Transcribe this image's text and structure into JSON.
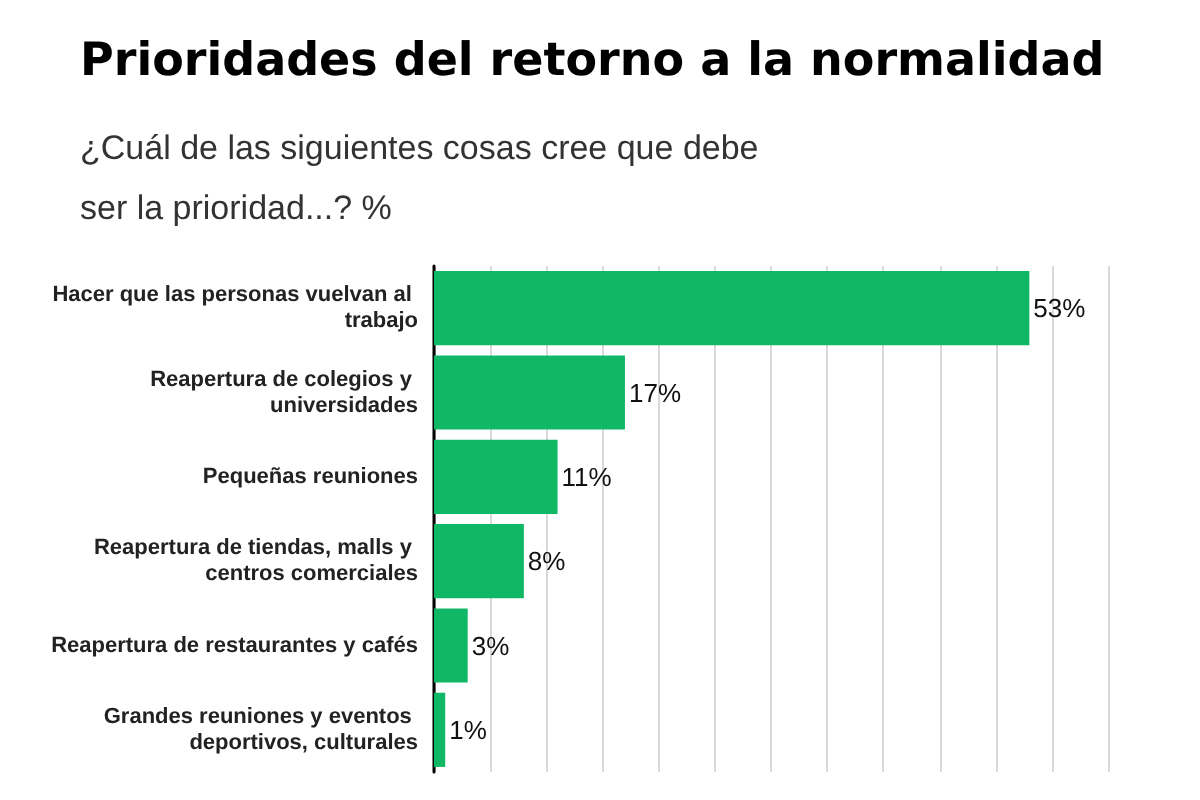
{
  "chart_data": {
    "type": "bar",
    "orientation": "horizontal",
    "title": "Prioridades del retorno a la normalidad",
    "subtitle": "¿Cuál de las siguientes cosas cree que debe ser la prioridad...? %",
    "categories": [
      "Hacer que las personas vuelvan al trabajo",
      "Reapertura de colegios y universidades",
      "Pequeñas reuniones",
      "Reapertura de tiendas, malls y centros comerciales",
      "Reapertura de restaurantes y cafés",
      "Grandes reuniones y eventos deportivos, culturales"
    ],
    "values": [
      53,
      17,
      11,
      8,
      3,
      1
    ],
    "value_labels": [
      "53%",
      "17%",
      "11%",
      "8%",
      "3%",
      "1%"
    ],
    "color": "#10b866",
    "xlim": [
      0,
      60
    ],
    "xticks": [
      0,
      {
        "value": 5,
        "label": null
      },
      {
        "value": 10,
        "label": null
      },
      {
        "value": 15,
        "label": null
      },
      {
        "value": 20,
        "label": null
      },
      {
        "value": 25,
        "label": null
      },
      {
        "value": 30,
        "label": null
      },
      {
        "value": 35,
        "label": null
      },
      {
        "value": 40,
        "label": null
      },
      {
        "value": 45,
        "label": null
      },
      {
        "value": 50,
        "label": null
      },
      {
        "value": 55,
        "label": null
      },
      {
        "value": 60,
        "label": null
      }
    ],
    "grid": "x",
    "tick_labels": "y"
  }
}
